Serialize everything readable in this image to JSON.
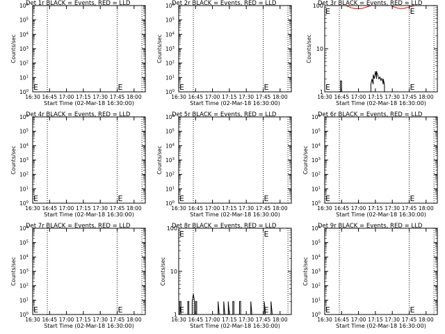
{
  "chart_data": [
    {
      "id": "det1",
      "type": "line",
      "title": "Det 1r BLACK = Events, RED = LLD",
      "xlabel": "Start Time (02-Mar-18 16:30:00)",
      "ylabel": "Counts/sec",
      "xlim": [
        "16:30",
        "18:10"
      ],
      "xticks": [
        "16:30",
        "16:45",
        "17:00",
        "17:15",
        "17:30",
        "17:45",
        "18:00"
      ],
      "yscale": "log",
      "ylim": [
        1,
        1000000
      ],
      "yticks": [
        "10^0",
        "10^1",
        "10^2",
        "10^3",
        "10^4",
        "10^5",
        "10^6"
      ],
      "vlines": [
        "16:43",
        "17:45",
        "18:07"
      ],
      "markers": [
        {
          "label": "E",
          "x": "16:30"
        },
        {
          "label": "E",
          "x": "17:45"
        }
      ],
      "series": []
    },
    {
      "id": "det2",
      "type": "line",
      "title": "Det 2r BLACK = Events, RED = LLD",
      "xlabel": "Start Time (02-Mar-18 16:30:00)",
      "ylabel": "Counts/sec",
      "xlim": [
        "16:30",
        "18:10"
      ],
      "xticks": [
        "16:30",
        "16:45",
        "17:00",
        "17:15",
        "17:30",
        "17:45",
        "18:00"
      ],
      "yscale": "log",
      "ylim": [
        1,
        1000000
      ],
      "yticks": [
        "10^0",
        "10^1",
        "10^2",
        "10^3",
        "10^4",
        "10^5",
        "10^6"
      ],
      "vlines": [
        "16:43",
        "17:45",
        "18:07"
      ],
      "markers": [
        {
          "label": "E",
          "x": "16:30"
        },
        {
          "label": "E",
          "x": "17:45"
        }
      ],
      "series": []
    },
    {
      "id": "det3",
      "type": "line",
      "title": "Det 3r BLACK = Events, RED = LLD",
      "xlabel": "Start Time (02-Mar-18 16:30:00)",
      "ylabel": "Counts/sec",
      "xlim": [
        "16:30",
        "18:10"
      ],
      "xticks": [
        "16:30",
        "16:45",
        "17:00",
        "17:15",
        "17:30",
        "17:45",
        "18:00"
      ],
      "yscale": "log",
      "ylim": [
        1,
        100
      ],
      "yticks": [
        "1",
        "10",
        "100"
      ],
      "vlines": [
        "16:43",
        "17:45",
        "18:07"
      ],
      "markers": [
        {
          "label": "E",
          "x": "16:30"
        },
        {
          "label": "E",
          "x": "17:45"
        }
      ],
      "series": [
        {
          "color": "#000000",
          "points": [
            [
              "16:30",
              1
            ],
            [
              "16:44",
              1
            ],
            [
              "16:44",
              1.8
            ],
            [
              "16:45",
              1.8
            ],
            [
              "16:45",
              1
            ],
            [
              "17:11",
              1
            ],
            [
              "17:11",
              1.5
            ],
            [
              "17:12",
              2.0
            ],
            [
              "17:13",
              1.5
            ],
            [
              "17:13",
              2.5
            ],
            [
              "17:14",
              2.0
            ],
            [
              "17:15",
              3.0
            ],
            [
              "17:16",
              2.0
            ],
            [
              "17:16",
              3.0
            ],
            [
              "17:17",
              2.5
            ],
            [
              "17:18",
              2.0
            ],
            [
              "17:19",
              2.2
            ],
            [
              "17:20",
              1.8
            ],
            [
              "17:20",
              2.0
            ],
            [
              "17:21",
              2.0
            ],
            [
              "17:22",
              1.5
            ],
            [
              "17:22",
              2.0
            ],
            [
              "17:23",
              1.5
            ],
            [
              "17:23",
              1
            ],
            [
              "18:10",
              1
            ]
          ]
        },
        {
          "color": "#dd0000",
          "points": [
            [
              "16:49",
              100
            ],
            [
              "16:51",
              95
            ],
            [
              "16:53",
              90
            ],
            [
              "16:55",
              87
            ],
            [
              "16:57",
              85
            ],
            [
              "17:00",
              84
            ],
            [
              "17:03",
              86
            ],
            [
              "17:06",
              90
            ],
            [
              "17:09",
              96
            ],
            [
              "17:11",
              100
            ]
          ]
        },
        {
          "color": "#dd0000",
          "points": [
            [
              "17:29",
              100
            ],
            [
              "17:31",
              94
            ],
            [
              "17:33",
              90
            ],
            [
              "17:35",
              87
            ],
            [
              "17:37",
              86
            ],
            [
              "17:40",
              86
            ],
            [
              "17:42",
              88
            ],
            [
              "17:45",
              92
            ],
            [
              "17:48",
              97
            ],
            [
              "17:50",
              100
            ]
          ]
        }
      ]
    },
    {
      "id": "det4",
      "type": "line",
      "title": "Det 4r BLACK = Events, RED = LLD",
      "xlabel": "Start Time (02-Mar-18 16:30:00)",
      "ylabel": "Counts/sec",
      "xlim": [
        "16:30",
        "18:10"
      ],
      "xticks": [
        "16:30",
        "16:45",
        "17:00",
        "17:15",
        "17:30",
        "17:45",
        "18:00"
      ],
      "yscale": "log",
      "ylim": [
        1,
        1000000
      ],
      "yticks": [
        "10^0",
        "10^1",
        "10^2",
        "10^3",
        "10^4",
        "10^5",
        "10^6"
      ],
      "vlines": [
        "16:43",
        "17:45",
        "18:07"
      ],
      "markers": [
        {
          "label": "E",
          "x": "16:30"
        },
        {
          "label": "E",
          "x": "17:45"
        }
      ],
      "series": []
    },
    {
      "id": "det5",
      "type": "line",
      "title": "Det 5r BLACK = Events, RED = LLD",
      "xlabel": "Start Time (02-Mar-18 16:30:00)",
      "ylabel": "Counts/sec",
      "xlim": [
        "16:30",
        "18:10"
      ],
      "xticks": [
        "16:30",
        "16:45",
        "17:00",
        "17:15",
        "17:30",
        "17:45",
        "18:00"
      ],
      "yscale": "log",
      "ylim": [
        1,
        1000000
      ],
      "yticks": [
        "10^0",
        "10^1",
        "10^2",
        "10^3",
        "10^4",
        "10^5",
        "10^6"
      ],
      "vlines": [
        "16:43",
        "17:45",
        "18:07"
      ],
      "markers": [
        {
          "label": "E",
          "x": "16:30"
        },
        {
          "label": "E",
          "x": "17:45"
        }
      ],
      "series": []
    },
    {
      "id": "det6",
      "type": "line",
      "title": "Det 6r BLACK = Events, RED = LLD",
      "xlabel": "Start Time (02-Mar-18 16:30:00)",
      "ylabel": "Counts/sec",
      "xlim": [
        "16:30",
        "18:10"
      ],
      "xticks": [
        "16:30",
        "16:45",
        "17:00",
        "17:15",
        "17:30",
        "17:45",
        "18:00"
      ],
      "yscale": "log",
      "ylim": [
        1,
        1000000
      ],
      "yticks": [
        "10^0",
        "10^1",
        "10^2",
        "10^3",
        "10^4",
        "10^5",
        "10^6"
      ],
      "vlines": [
        "16:43",
        "17:45",
        "18:07"
      ],
      "markers": [
        {
          "label": "E",
          "x": "16:30"
        },
        {
          "label": "E",
          "x": "17:45"
        }
      ],
      "series": []
    },
    {
      "id": "det7",
      "type": "line",
      "title": "Det 7r BLACK = Events, RED = LLD",
      "xlabel": "Start Time (02-Mar-18 16:30:00)",
      "ylabel": "Counts/sec",
      "xlim": [
        "16:30",
        "18:10"
      ],
      "xticks": [
        "16:30",
        "16:45",
        "17:00",
        "17:15",
        "17:30",
        "17:45",
        "18:00"
      ],
      "yscale": "log",
      "ylim": [
        1,
        1000000
      ],
      "yticks": [
        "10^0",
        "10^1",
        "10^2",
        "10^3",
        "10^4",
        "10^5",
        "10^6"
      ],
      "vlines": [
        "16:43",
        "17:45",
        "18:07"
      ],
      "markers": [
        {
          "label": "E",
          "x": "16:30"
        },
        {
          "label": "E",
          "x": "17:45"
        }
      ],
      "series": []
    },
    {
      "id": "det8",
      "type": "line",
      "title": "Det 8r BLACK = Events, RED = LLD",
      "xlabel": "Start Time (02-Mar-18 16:30:00)",
      "ylabel": "Counts/sec",
      "xlim": [
        "16:30",
        "18:10"
      ],
      "xticks": [
        "16:30",
        "16:45",
        "17:00",
        "17:15",
        "17:30",
        "17:45",
        "18:00"
      ],
      "yscale": "log",
      "ylim": [
        1,
        100
      ],
      "yticks": [
        "1",
        "10",
        "100"
      ],
      "vlines": [
        "16:43",
        "17:45",
        "18:07"
      ],
      "markers": [
        {
          "label": "E",
          "x": "16:30"
        },
        {
          "label": "E",
          "x": "17:45"
        }
      ],
      "series": [
        {
          "color": "#000000",
          "points": [
            [
              "16:30",
              1
            ],
            [
              "16:31",
              1
            ],
            [
              "16:31",
              2
            ],
            [
              "16:32",
              2
            ],
            [
              "16:32",
              1
            ],
            [
              "16:38",
              1
            ],
            [
              "16:38",
              2
            ],
            [
              "16:39",
              2
            ],
            [
              "16:39",
              1
            ],
            [
              "16:42",
              1
            ],
            [
              "16:42",
              2
            ],
            [
              "16:43",
              3
            ],
            [
              "16:44",
              2
            ],
            [
              "16:44",
              1
            ],
            [
              "16:45",
              1
            ],
            [
              "16:45",
              2
            ],
            [
              "16:46",
              2
            ],
            [
              "16:46",
              1
            ],
            [
              "17:05",
              1
            ],
            [
              "17:05",
              2
            ],
            [
              "17:06",
              1
            ],
            [
              "17:10",
              1
            ],
            [
              "17:10",
              2
            ],
            [
              "17:11",
              1
            ],
            [
              "17:14",
              1
            ],
            [
              "17:14",
              2
            ],
            [
              "17:15",
              1
            ],
            [
              "17:18",
              1
            ],
            [
              "17:18",
              2
            ],
            [
              "17:19",
              2
            ],
            [
              "17:19",
              1
            ],
            [
              "17:24",
              1
            ],
            [
              "17:24",
              2
            ],
            [
              "17:25",
              2
            ],
            [
              "17:25",
              1
            ],
            [
              "17:34",
              1
            ],
            [
              "17:34",
              2
            ],
            [
              "17:35",
              1
            ],
            [
              "17:46",
              1
            ],
            [
              "17:46",
              2
            ],
            [
              "17:47",
              1
            ],
            [
              "17:52",
              1
            ],
            [
              "17:52",
              2
            ],
            [
              "17:53",
              1
            ],
            [
              "18:10",
              1
            ]
          ]
        }
      ]
    },
    {
      "id": "det9",
      "type": "line",
      "title": "Det 9r BLACK = Events, RED = LLD",
      "xlabel": "Start Time (02-Mar-18 16:30:00)",
      "ylabel": "Counts/sec",
      "xlim": [
        "16:30",
        "18:10"
      ],
      "xticks": [
        "16:30",
        "16:45",
        "17:00",
        "17:15",
        "17:30",
        "17:45",
        "18:00"
      ],
      "yscale": "log",
      "ylim": [
        1,
        1000000
      ],
      "yticks": [
        "10^0",
        "10^1",
        "10^2",
        "10^3",
        "10^4",
        "10^5",
        "10^6"
      ],
      "vlines": [
        "16:43",
        "17:45",
        "18:07"
      ],
      "markers": [
        {
          "label": "E",
          "x": "16:30"
        },
        {
          "label": "E",
          "x": "17:45"
        }
      ],
      "series": []
    }
  ]
}
